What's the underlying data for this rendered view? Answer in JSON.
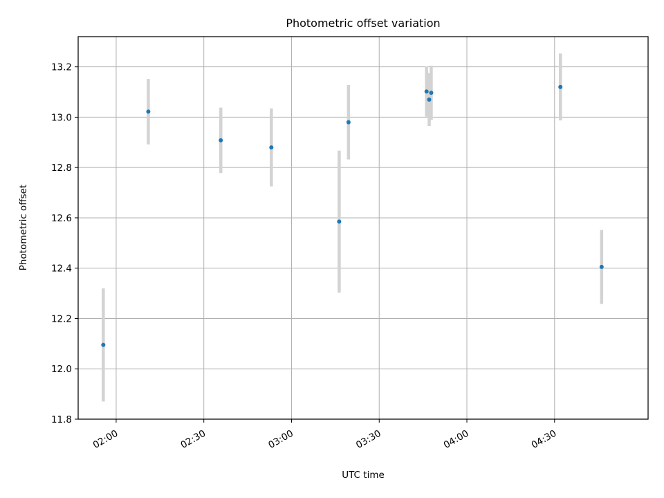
{
  "chart_data": {
    "type": "scatter",
    "title": "Photometric offset variation",
    "xlabel": "UTC time",
    "ylabel": "Photometric offset",
    "xlim": [
      "01:47",
      "05:02"
    ],
    "ylim": [
      11.8,
      13.32
    ],
    "x_ticks": [
      "02:00",
      "02:30",
      "03:00",
      "03:30",
      "04:00",
      "04:30"
    ],
    "y_ticks": [
      11.8,
      12.0,
      12.2,
      12.4,
      12.6,
      12.8,
      13.0,
      13.2
    ],
    "grid": true,
    "colors": {
      "marker": "#1f77b4",
      "errorbar": "#d3d3d3",
      "grid": "#b0b0b0"
    },
    "points": [
      {
        "time": "01:55:36",
        "y": 12.095,
        "err": 0.225
      },
      {
        "time": "02:11:00",
        "y": 13.022,
        "err": 0.13
      },
      {
        "time": "02:35:48",
        "y": 12.908,
        "err": 0.13
      },
      {
        "time": "02:53:06",
        "y": 12.88,
        "err": 0.155
      },
      {
        "time": "03:16:18",
        "y": 12.585,
        "err": 0.282
      },
      {
        "time": "03:19:30",
        "y": 12.98,
        "err": 0.148
      },
      {
        "time": "03:46:12",
        "y": 13.102,
        "err": 0.1
      },
      {
        "time": "03:47:06",
        "y": 13.07,
        "err": 0.105
      },
      {
        "time": "03:47:48",
        "y": 13.097,
        "err": 0.108
      },
      {
        "time": "04:32:00",
        "y": 13.12,
        "err": 0.133
      },
      {
        "time": "04:46:06",
        "y": 12.405,
        "err": 0.147
      }
    ]
  }
}
